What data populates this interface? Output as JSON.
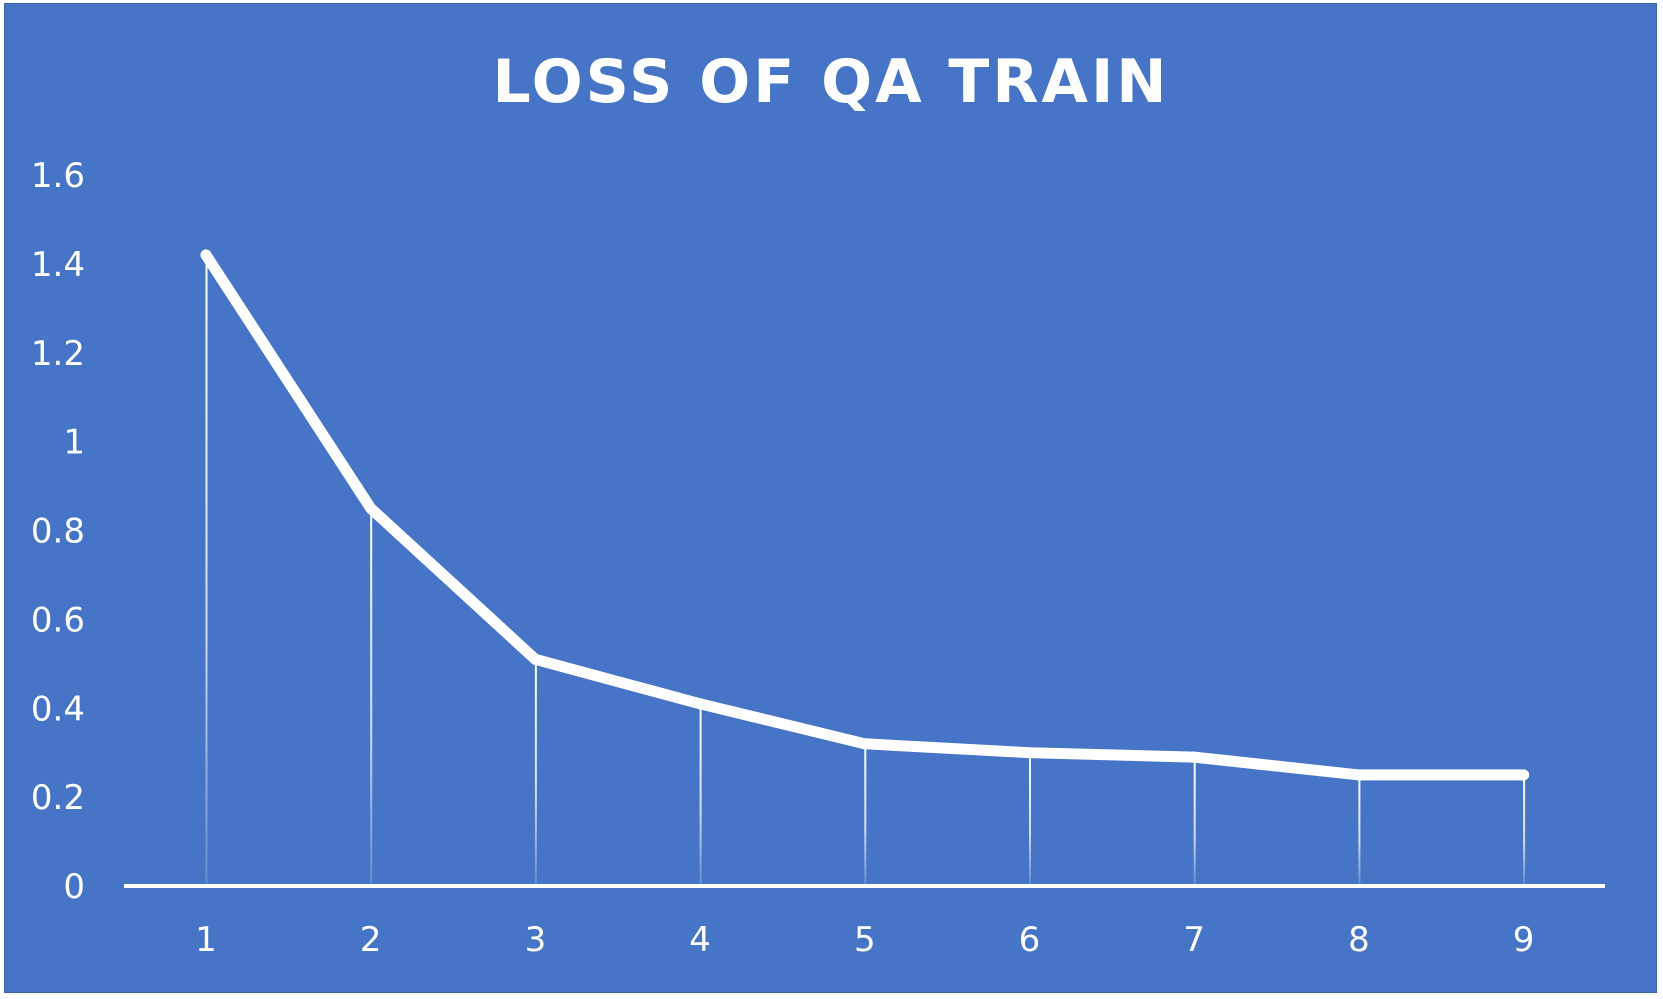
{
  "chart_data": {
    "type": "line",
    "title": "LOSS OF QA TRAIN",
    "xlabel": "",
    "ylabel": "",
    "categories": [
      "1",
      "2",
      "3",
      "4",
      "5",
      "6",
      "7",
      "8",
      "9"
    ],
    "series": [
      {
        "values": [
          1.42,
          0.85,
          0.51,
          0.41,
          0.32,
          0.3,
          0.29,
          0.25,
          0.25
        ]
      }
    ],
    "y_ticks": [
      "0",
      "0.2",
      "0.4",
      "0.6",
      "0.8",
      "1",
      "1.2",
      "1.4",
      "1.6"
    ],
    "ylim": [
      0,
      1.6
    ],
    "grid": false,
    "drop_lines": true,
    "legend": "none",
    "colors": {
      "background": "#4674C6",
      "line": "#FFFFFF",
      "text": "#FFFFFF"
    }
  }
}
